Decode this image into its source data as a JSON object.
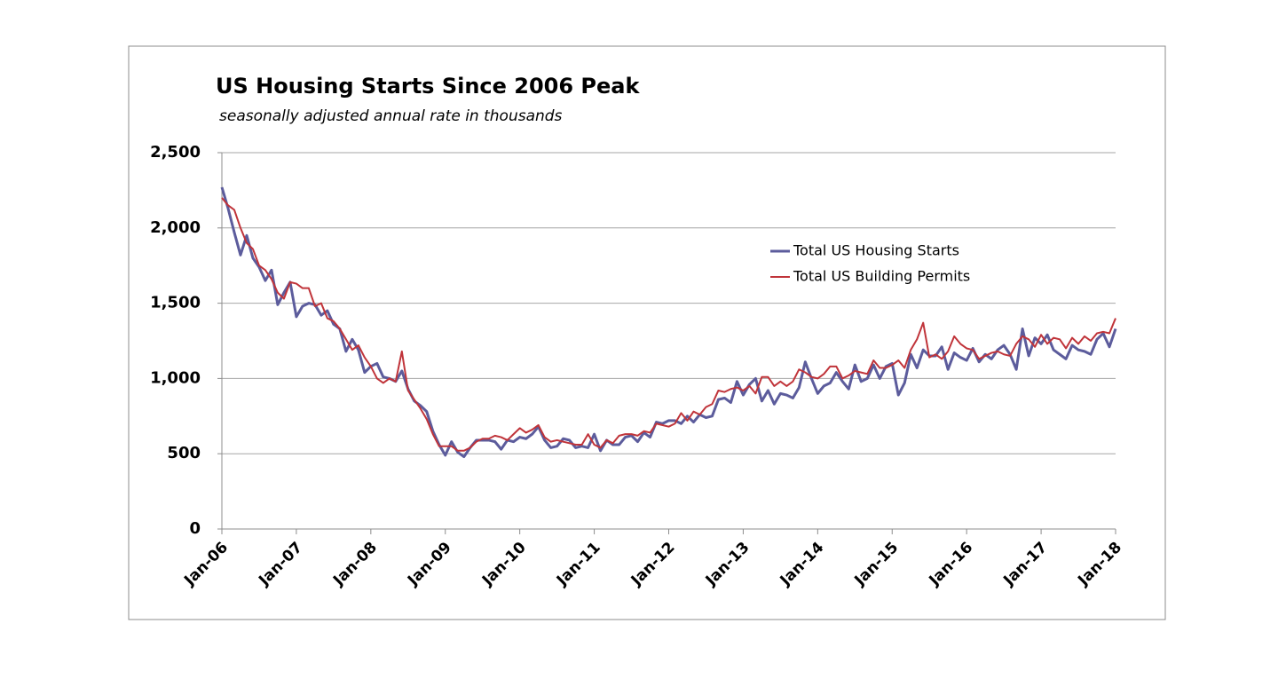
{
  "chart_data": {
    "type": "line",
    "title": "US Housing Starts Since 2006 Peak",
    "subtitle": "seasonally adjusted annual rate in thousands",
    "categories": [
      "Jan-06",
      null,
      null,
      null,
      null,
      null,
      null,
      null,
      null,
      null,
      null,
      null,
      "Jan-07",
      null,
      null,
      null,
      null,
      null,
      null,
      null,
      null,
      null,
      null,
      null,
      "Jan-08",
      null,
      null,
      null,
      null,
      null,
      null,
      null,
      null,
      null,
      null,
      null,
      "Jan-09",
      null,
      null,
      null,
      null,
      null,
      null,
      null,
      null,
      null,
      null,
      null,
      "Jan-10",
      null,
      null,
      null,
      null,
      null,
      null,
      null,
      null,
      null,
      null,
      null,
      "Jan-11",
      null,
      null,
      null,
      null,
      null,
      null,
      null,
      null,
      null,
      null,
      null,
      "Jan-12",
      null,
      null,
      null,
      null,
      null,
      null,
      null,
      null,
      null,
      null,
      null,
      "Jan-13",
      null,
      null,
      null,
      null,
      null,
      null,
      null,
      null,
      null,
      null,
      null,
      "Jan-14",
      null,
      null,
      null,
      null,
      null,
      null,
      null,
      null,
      null,
      null,
      null,
      "Jan-15",
      null,
      null,
      null,
      null,
      null,
      null,
      null,
      null,
      null,
      null,
      null,
      "Jan-16",
      null,
      null,
      null,
      null,
      null,
      null,
      null,
      null,
      null,
      null,
      null,
      "Jan-17",
      null,
      null,
      null,
      null,
      null,
      null,
      null,
      null,
      null,
      null,
      null,
      "Jan-18"
    ],
    "series": [
      {
        "name": "Total US Housing Starts",
        "color": "#5c5c9c",
        "values": [
          2270,
          2130,
          1970,
          1820,
          1950,
          1800,
          1740,
          1650,
          1720,
          1490,
          1570,
          1640,
          1410,
          1480,
          1500,
          1490,
          1420,
          1450,
          1360,
          1330,
          1180,
          1260,
          1190,
          1040,
          1080,
          1100,
          1010,
          1000,
          980,
          1050,
          930,
          850,
          820,
          780,
          650,
          560,
          490,
          580,
          510,
          480,
          540,
          590,
          590,
          590,
          580,
          530,
          590,
          580,
          610,
          600,
          630,
          680,
          590,
          540,
          550,
          600,
          590,
          540,
          550,
          540,
          630,
          520,
          590,
          560,
          560,
          610,
          620,
          580,
          640,
          610,
          710,
          700,
          720,
          720,
          700,
          750,
          710,
          760,
          740,
          750,
          860,
          870,
          840,
          980,
          890,
          960,
          1000,
          850,
          920,
          830,
          900,
          890,
          870,
          940,
          1110,
          1000,
          900,
          950,
          970,
          1040,
          980,
          930,
          1090,
          980,
          1000,
          1090,
          1000,
          1080,
          1100,
          890,
          970,
          1160,
          1070,
          1190,
          1150,
          1150,
          1210,
          1060,
          1170,
          1140,
          1120,
          1200,
          1110,
          1160,
          1130,
          1190,
          1220,
          1160,
          1060,
          1330,
          1150,
          1270,
          1230,
          1290,
          1190,
          1160,
          1130,
          1220,
          1190,
          1180,
          1160,
          1260,
          1300,
          1210,
          1330
        ]
      },
      {
        "name": "Total US Building Permits",
        "color": "#c0343a",
        "values": [
          2200,
          2150,
          2120,
          2000,
          1900,
          1860,
          1750,
          1720,
          1660,
          1570,
          1530,
          1640,
          1630,
          1600,
          1600,
          1480,
          1500,
          1400,
          1380,
          1330,
          1260,
          1190,
          1220,
          1140,
          1080,
          1000,
          970,
          1000,
          980,
          1180,
          920,
          860,
          800,
          730,
          630,
          550,
          550,
          550,
          520,
          520,
          540,
          580,
          600,
          600,
          620,
          610,
          590,
          630,
          670,
          640,
          660,
          690,
          610,
          580,
          590,
          580,
          570,
          560,
          560,
          630,
          560,
          540,
          590,
          570,
          620,
          630,
          630,
          620,
          650,
          640,
          700,
          690,
          680,
          700,
          770,
          720,
          780,
          760,
          810,
          830,
          920,
          910,
          930,
          940,
          920,
          950,
          900,
          1010,
          1010,
          950,
          980,
          950,
          980,
          1060,
          1040,
          1010,
          1000,
          1030,
          1080,
          1080,
          1000,
          1020,
          1050,
          1040,
          1030,
          1120,
          1070,
          1070,
          1090,
          1120,
          1070,
          1190,
          1260,
          1370,
          1140,
          1160,
          1130,
          1180,
          1280,
          1230,
          1200,
          1190,
          1130,
          1150,
          1170,
          1180,
          1160,
          1150,
          1230,
          1280,
          1260,
          1210,
          1290,
          1230,
          1270,
          1260,
          1200,
          1270,
          1230,
          1280,
          1250,
          1300,
          1310,
          1300,
          1400
        ]
      }
    ],
    "ylim": [
      0,
      2500
    ],
    "yticks": [
      0,
      500,
      {
        "value": 1000,
        "label": "1,000"
      },
      {
        "value": 1500,
        "label": "1,500"
      },
      {
        "value": 2000,
        "label": "2,000"
      },
      {
        "value": 2500,
        "label": "2,500"
      }
    ],
    "grid": true,
    "legend": "upper right"
  }
}
